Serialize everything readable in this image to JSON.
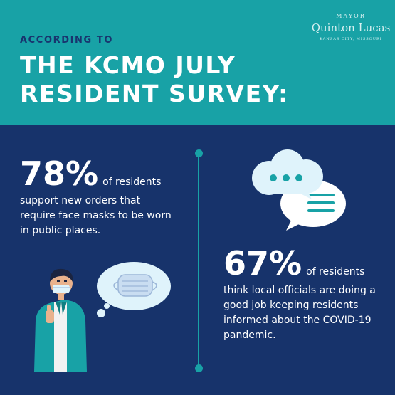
{
  "header": {
    "eyebrow": "ACCORDING TO",
    "title_line1": "THE KCMO JULY",
    "title_line2": "RESIDENT SURVEY:"
  },
  "branding": {
    "mayor_label": "MAYOR",
    "name": "Quinton Lucas",
    "city": "KANSAS CITY, MISSOURI"
  },
  "stats": [
    {
      "percent": "78%",
      "inline_text": "of residents",
      "body": "support new orders that require face masks to be worn in public places."
    },
    {
      "percent": "67%",
      "inline_text": "of residents",
      "body": "think local officials are doing a good job keeping residents informed about the COVID-19 pandemic."
    }
  ],
  "colors": {
    "header_teal": "#18a2a6",
    "navy": "#17336b",
    "white": "#ffffff",
    "light_blue": "#dff3fb"
  },
  "icons": [
    "chat-bubbles-icon",
    "person-with-mask-icon",
    "face-mask-thought-bubble-icon"
  ]
}
